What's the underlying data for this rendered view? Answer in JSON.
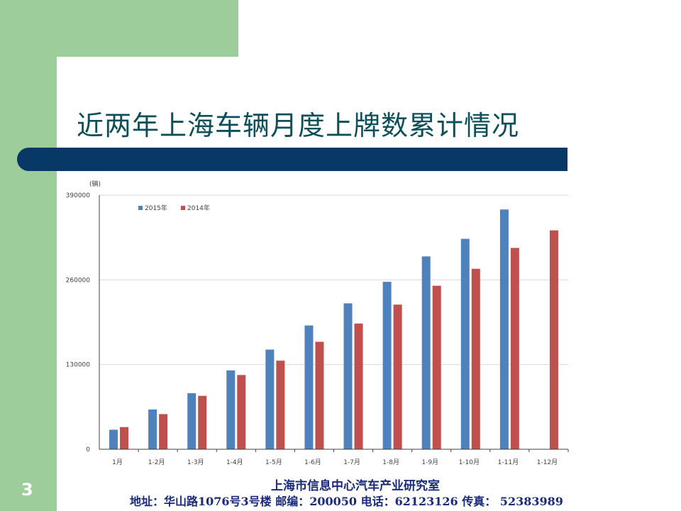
{
  "slide": {
    "title": "近两年上海车辆月度上牌数累计情况",
    "number": "3",
    "footer_org": "上海市信息中心汽车产业研究室",
    "footer_address": "地址：华山路1076号3号楼   邮编：200050  电话：62123126  传真：  52383989"
  },
  "colors": {
    "green": "#9dcd9b",
    "navy": "#073866",
    "s2015": "#4f81bd",
    "s2014": "#c0504d"
  },
  "chart_data": {
    "type": "bar",
    "ylabel": "(辆)",
    "ylim": [
      0,
      390000
    ],
    "yticks": [
      0,
      130000,
      260000,
      390000
    ],
    "ytick_labels": [
      "0",
      "130000",
      "260000",
      "390000"
    ],
    "grid": true,
    "legend_position": "top-left",
    "categories": [
      "1月",
      "1-2月",
      "1-3月",
      "1-4月",
      "1-5月",
      "1-6月",
      "1-7月",
      "1-8月",
      "1-9月",
      "1-10月",
      "1-11月",
      "1-12月"
    ],
    "series": [
      {
        "name": "2015年",
        "color": "#4f81bd",
        "values": [
          30000,
          61000,
          86000,
          121000,
          153000,
          190000,
          224000,
          257000,
          296000,
          323000,
          368000,
          null
        ]
      },
      {
        "name": "2014年",
        "color": "#c0504d",
        "values": [
          34000,
          54000,
          82000,
          114000,
          136000,
          165000,
          193000,
          222000,
          251000,
          277000,
          309000,
          336000
        ]
      }
    ]
  }
}
